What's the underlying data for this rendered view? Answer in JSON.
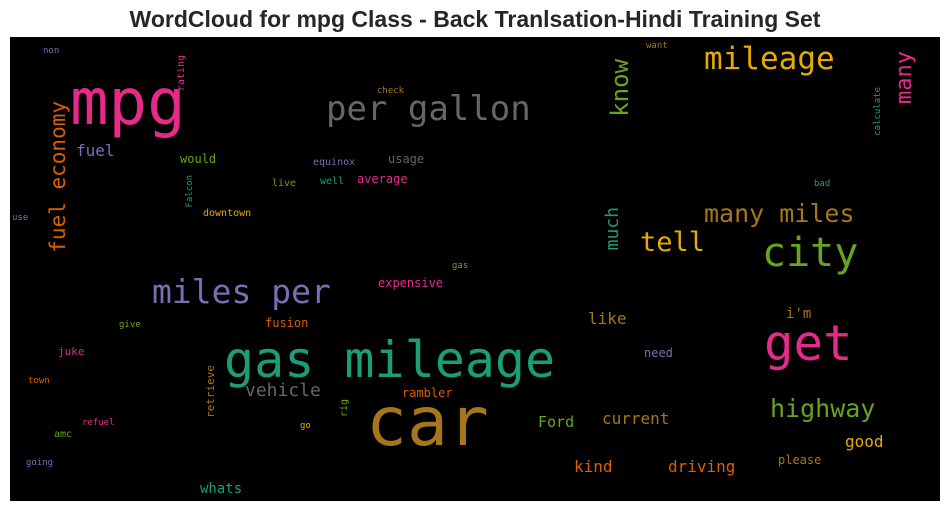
{
  "title": "WordCloud for mpg Class - Back Tranlsation-Hindi Training Set",
  "colors": {
    "pink": "#e7298a",
    "teal": "#1b9e77",
    "gold": "#a6761d",
    "orange": "#d95f02",
    "purple": "#7570b3",
    "green": "#66a61e",
    "yellow": "#e6ab02",
    "gray": "#666666"
  },
  "words": {
    "car": "car",
    "gas_mileage": "gas mileage",
    "mpg": "mpg",
    "get": "get",
    "city": "city",
    "miles_per": "miles per",
    "per_gallon": "per gallon",
    "mileage": "mileage",
    "highway": "highway",
    "many_miles": "many miles",
    "tell": "tell",
    "fuel_economy": "fuel economy",
    "know": "know",
    "many": "many",
    "much": "much",
    "vehicle": "vehicle",
    "fuel": "fuel",
    "current": "current",
    "driving": "driving",
    "kind": "kind",
    "good": "good",
    "like": "like",
    "ford": "Ford",
    "im": "i'm",
    "whats": "whats",
    "need": "need",
    "please": "please",
    "fusion": "fusion",
    "expensive": "expensive",
    "rambler": "rambler",
    "would": "would",
    "usage": "usage",
    "average": "average",
    "equinox": "equinox",
    "live": "live",
    "well": "well",
    "downtown": "downtown",
    "falcon": "Falcon",
    "rating": "rating",
    "check": "check",
    "want": "want",
    "calculate": "calculate",
    "bad": "bad",
    "gas": "gas",
    "give": "give",
    "juke": "juke",
    "retrieve": "retrieve",
    "rig": "rig",
    "town": "town",
    "refuel": "refuel",
    "amc": "amc",
    "go": "go",
    "going": "going",
    "use": "use",
    "non": "non"
  }
}
